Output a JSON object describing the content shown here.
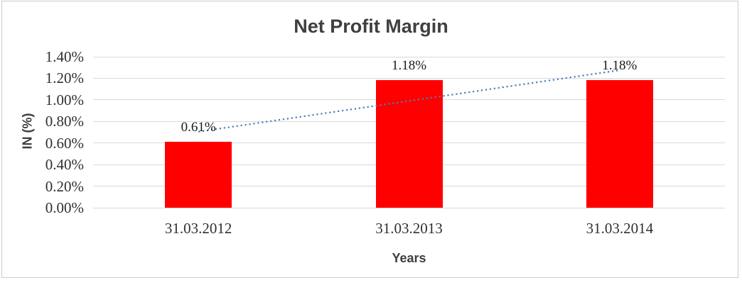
{
  "title": "Net Profit Margin",
  "chart_data": {
    "type": "bar",
    "title": "Net Profit Margin",
    "categories": [
      "31.03.2012",
      "31.03.2013",
      "31.03.2014"
    ],
    "values": [
      0.61,
      1.18,
      1.18
    ],
    "data_labels": [
      "0.61%",
      "1.18%",
      "1.18%"
    ],
    "xlabel": "Years",
    "ylabel": "IN (%)",
    "ylim": [
      0,
      1.4
    ],
    "ytick_labels": [
      "0.00%",
      "0.20%",
      "0.40%",
      "0.60%",
      "0.80%",
      "1.00%",
      "1.20%",
      "1.40%"
    ],
    "grid": true,
    "legend": false,
    "bar_color": "#FF0000",
    "trendline": {
      "style": "dotted",
      "color": "#4A7EBB",
      "start_value": 0.705,
      "end_value": 1.275
    }
  },
  "colors": {
    "background": "#FFFFFF",
    "border": "#CBCBCB",
    "gridline": "#D9D9D9",
    "title_text": "#3F3F3F",
    "axis_title_text": "#3F3F3F",
    "tick_text": "#303030",
    "data_label_text": "#1A1A1A"
  }
}
